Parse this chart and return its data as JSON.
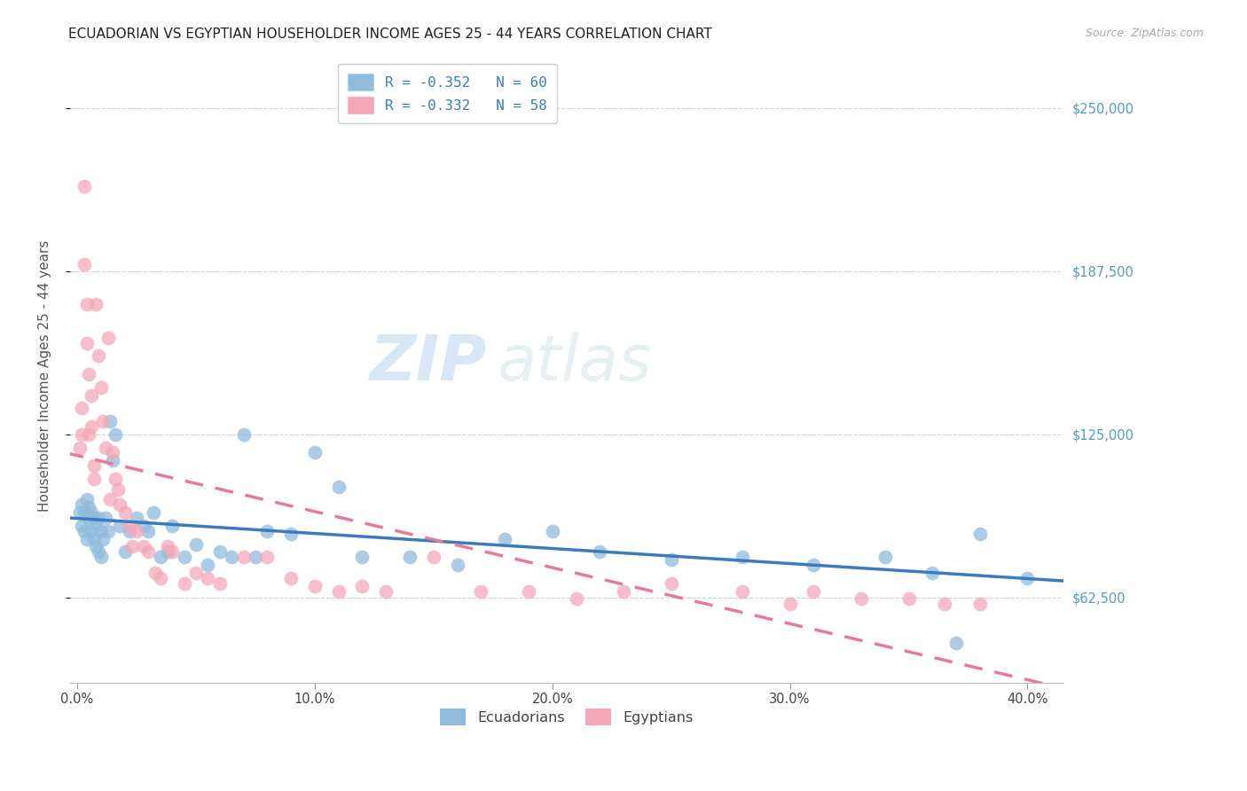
{
  "title": "ECUADORIAN VS EGYPTIAN HOUSEHOLDER INCOME AGES 25 - 44 YEARS CORRELATION CHART",
  "source": "Source: ZipAtlas.com",
  "ylabel": "Householder Income Ages 25 - 44 years",
  "ytick_labels": [
    "$62,500",
    "$125,000",
    "$187,500",
    "$250,000"
  ],
  "ytick_values": [
    62500,
    125000,
    187500,
    250000
  ],
  "ymin": 30000,
  "ymax": 265000,
  "xmin": -0.003,
  "xmax": 0.415,
  "legend_blue_r": "R = -0.352",
  "legend_blue_n": "N = 60",
  "legend_pink_r": "R = -0.332",
  "legend_pink_n": "N = 58",
  "color_blue": "#8fbcdb",
  "color_pink": "#f4a7b9",
  "color_trend_blue": "#3a7abf",
  "color_trend_pink": "#e8799a",
  "watermark_zip": "ZIP",
  "watermark_atlas": "atlas",
  "blue_x": [
    0.001,
    0.002,
    0.002,
    0.003,
    0.003,
    0.004,
    0.004,
    0.005,
    0.005,
    0.006,
    0.006,
    0.007,
    0.007,
    0.008,
    0.008,
    0.009,
    0.009,
    0.01,
    0.01,
    0.011,
    0.012,
    0.013,
    0.014,
    0.015,
    0.016,
    0.018,
    0.02,
    0.022,
    0.025,
    0.028,
    0.03,
    0.032,
    0.035,
    0.038,
    0.04,
    0.045,
    0.05,
    0.055,
    0.06,
    0.065,
    0.07,
    0.075,
    0.08,
    0.09,
    0.1,
    0.11,
    0.12,
    0.14,
    0.16,
    0.18,
    0.2,
    0.22,
    0.25,
    0.28,
    0.31,
    0.34,
    0.36,
    0.38,
    0.37,
    0.4
  ],
  "blue_y": [
    95000,
    98000,
    90000,
    95000,
    88000,
    100000,
    85000,
    97000,
    93000,
    95000,
    88000,
    93000,
    85000,
    90000,
    82000,
    93000,
    80000,
    88000,
    78000,
    85000,
    93000,
    88000,
    130000,
    115000,
    125000,
    90000,
    80000,
    88000,
    93000,
    90000,
    88000,
    95000,
    78000,
    80000,
    90000,
    78000,
    83000,
    75000,
    80000,
    78000,
    125000,
    78000,
    88000,
    87000,
    118000,
    105000,
    78000,
    78000,
    75000,
    85000,
    88000,
    80000,
    77000,
    78000,
    75000,
    78000,
    72000,
    87000,
    45000,
    70000
  ],
  "pink_x": [
    0.001,
    0.002,
    0.002,
    0.003,
    0.003,
    0.004,
    0.004,
    0.005,
    0.005,
    0.006,
    0.006,
    0.007,
    0.007,
    0.008,
    0.009,
    0.01,
    0.011,
    0.012,
    0.013,
    0.014,
    0.015,
    0.016,
    0.017,
    0.018,
    0.02,
    0.022,
    0.023,
    0.025,
    0.028,
    0.03,
    0.033,
    0.035,
    0.038,
    0.04,
    0.045,
    0.05,
    0.055,
    0.06,
    0.07,
    0.08,
    0.09,
    0.1,
    0.11,
    0.12,
    0.13,
    0.15,
    0.17,
    0.19,
    0.21,
    0.23,
    0.25,
    0.28,
    0.3,
    0.31,
    0.33,
    0.35,
    0.365,
    0.38
  ],
  "pink_y": [
    120000,
    125000,
    135000,
    190000,
    220000,
    175000,
    160000,
    148000,
    125000,
    140000,
    128000,
    113000,
    108000,
    175000,
    155000,
    143000,
    130000,
    120000,
    162000,
    100000,
    118000,
    108000,
    104000,
    98000,
    95000,
    90000,
    82000,
    88000,
    82000,
    80000,
    72000,
    70000,
    82000,
    80000,
    68000,
    72000,
    70000,
    68000,
    78000,
    78000,
    70000,
    67000,
    65000,
    67000,
    65000,
    78000,
    65000,
    65000,
    62000,
    65000,
    68000,
    65000,
    60000,
    65000,
    62000,
    62000,
    60000,
    60000
  ]
}
